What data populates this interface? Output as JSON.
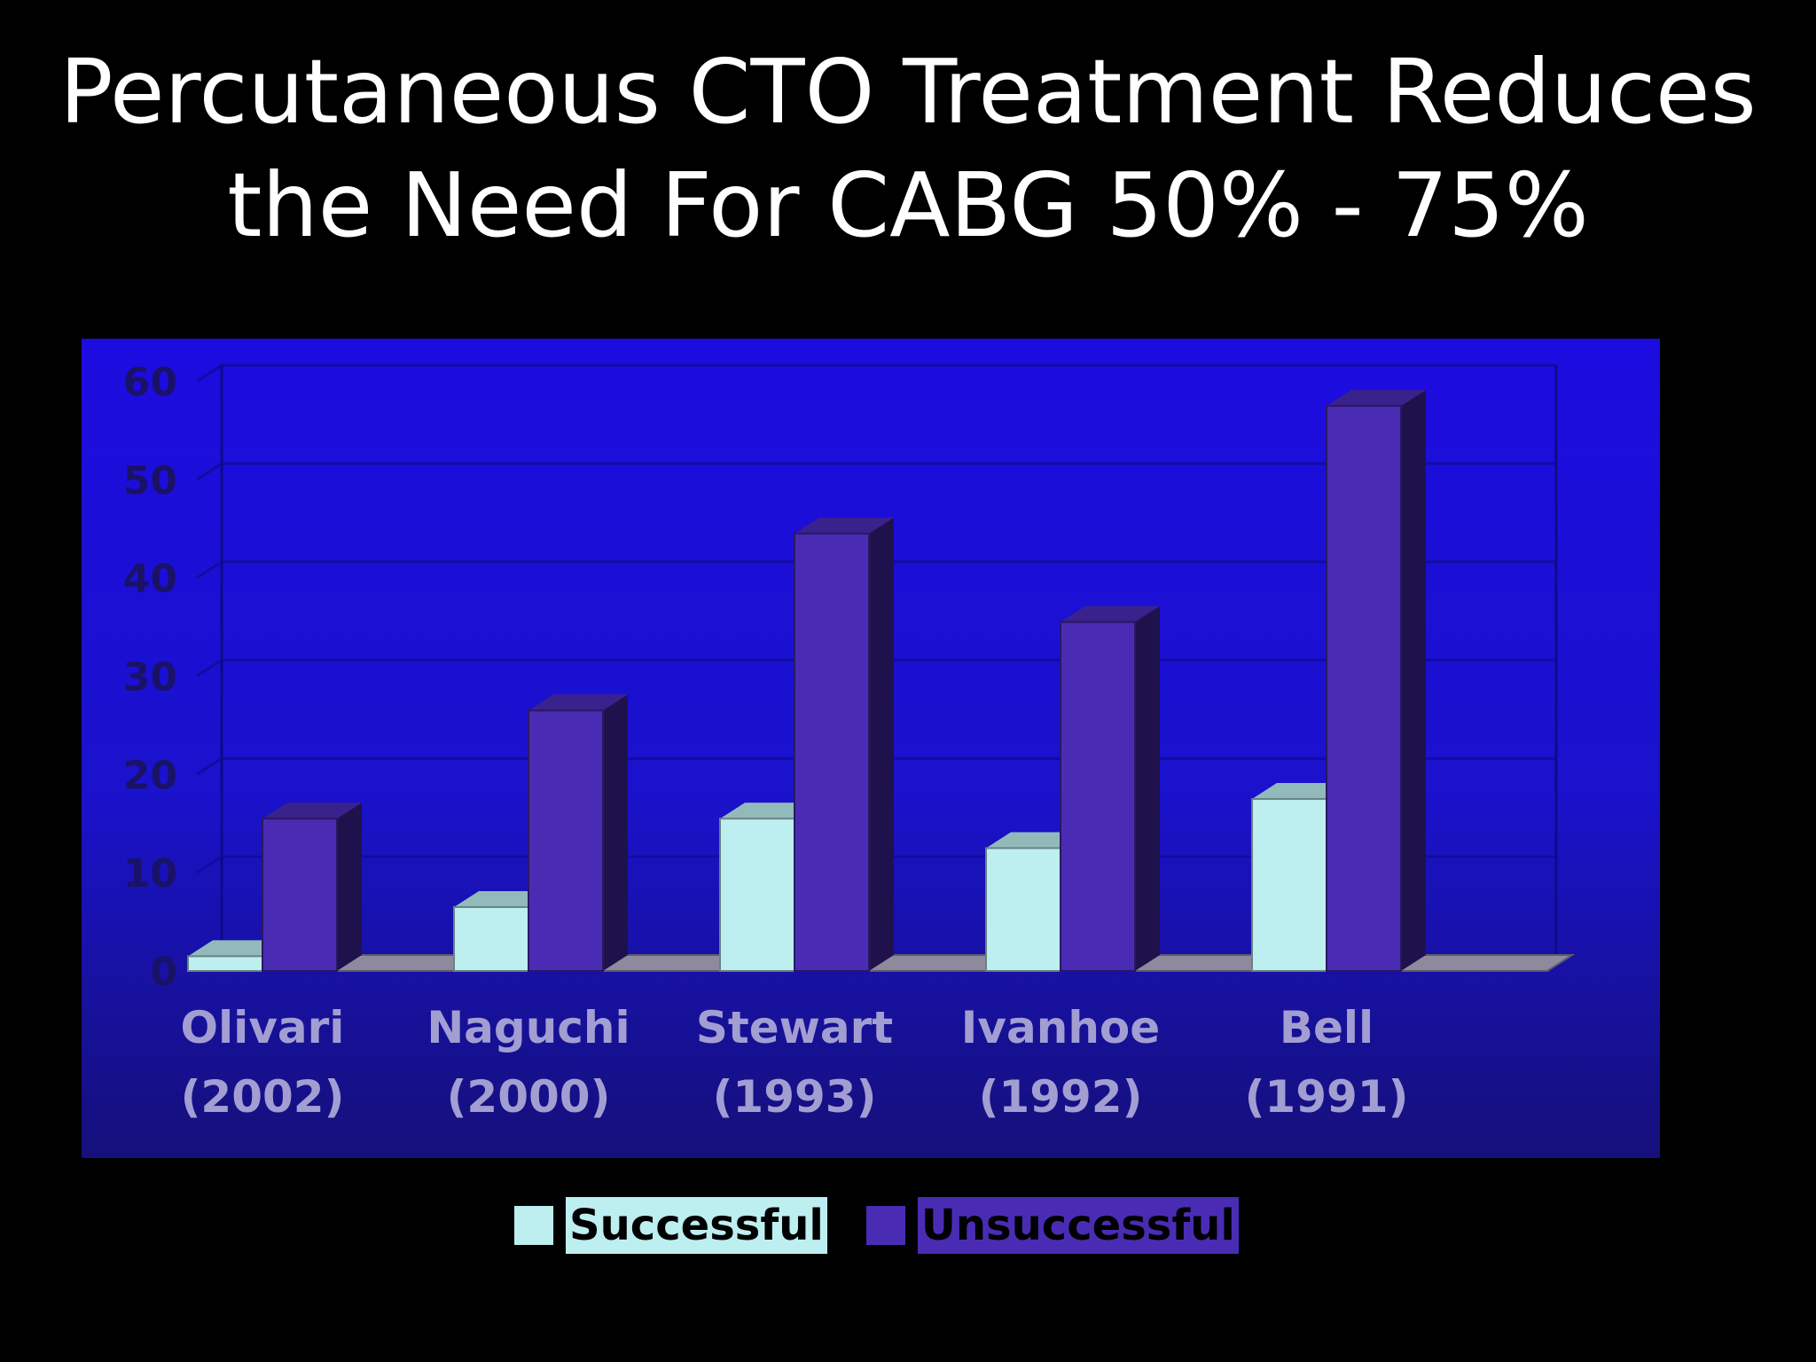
{
  "title_lines": [
    "Percutaneous CTO Treatment Reduces",
    "the Need For CABG 50% - 75%"
  ],
  "colors": {
    "background": "#000000",
    "plot_bg": "#1a10d8",
    "successful": "#bdeef0",
    "unsuccessful": "#4a2cb4",
    "category_text": "#a29ed2",
    "tick_text": "#1a1266"
  },
  "chart_data": {
    "type": "bar",
    "title": "Percutaneous CTO Treatment Reduces the Need For CABG 50% - 75%",
    "categories": [
      "Olivari (2002)",
      "Naguchi (2000)",
      "Stewart (1993)",
      "Ivanhoe (1992)",
      "Bell (1991)"
    ],
    "category_lines": [
      [
        "Olivari",
        "(2002)"
      ],
      [
        "Naguchi",
        "(2000)"
      ],
      [
        "Stewart",
        "(1993)"
      ],
      [
        "Ivanhoe",
        "(1992)"
      ],
      [
        "Bell",
        "(1991)"
      ]
    ],
    "series": [
      {
        "name": "Successful",
        "values": [
          1.5,
          6.5,
          15.5,
          12.5,
          17.5
        ]
      },
      {
        "name": "Unsuccessful",
        "values": [
          15.5,
          26.5,
          44.5,
          35.5,
          57.5
        ]
      }
    ],
    "ylim": [
      0,
      60
    ],
    "yticks": [
      0,
      10,
      20,
      30,
      40,
      50,
      60
    ],
    "grid": true,
    "legend": "bottom",
    "style": "3d"
  }
}
